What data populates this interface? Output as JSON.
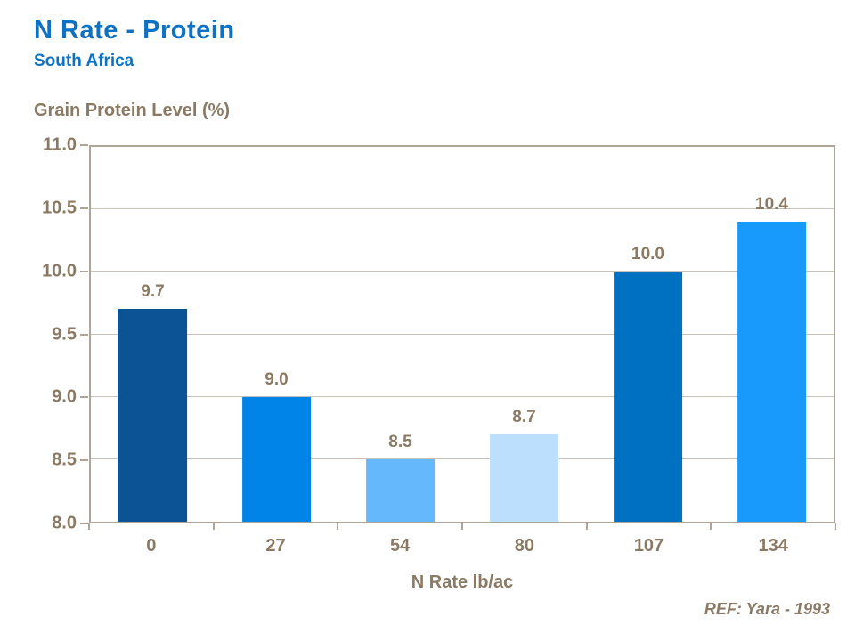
{
  "header": {
    "title": "N Rate - Protein",
    "subtitle": "South Africa"
  },
  "footer": {
    "reference": "REF: Yara - 1993"
  },
  "colors": {
    "title_blue": "#0e72c4",
    "text_brown": "#8a7a64",
    "axis_frame": "#afa498",
    "gridline": "#c9c1b8",
    "background": "#ffffff"
  },
  "chart_data": {
    "type": "bar",
    "title": "Grain Protein Level (%)",
    "xlabel": "N Rate lb/ac",
    "ylabel": "Grain Protein Level (%)",
    "categories": [
      "0",
      "27",
      "54",
      "80",
      "107",
      "134"
    ],
    "values": [
      9.7,
      9.0,
      8.5,
      8.7,
      10.0,
      10.4
    ],
    "data_labels": [
      "9.7",
      "9.0",
      "8.5",
      "8.7",
      "10.0",
      "10.4"
    ],
    "bar_colors": [
      "#0b5394",
      "#0084e8",
      "#64b8fb",
      "#bbdffc",
      "#0070c0",
      "#189afd"
    ],
    "ylim": [
      8.0,
      11.0
    ],
    "yticks": [
      8.0,
      8.5,
      9.0,
      9.5,
      10.0,
      10.5,
      11.0
    ],
    "ytick_labels": [
      "8.0",
      "8.5",
      "9.0",
      "9.5",
      "10.0",
      "10.5",
      "11.0"
    ],
    "bar_width_fraction": 0.56,
    "grid": true,
    "legend": false
  }
}
